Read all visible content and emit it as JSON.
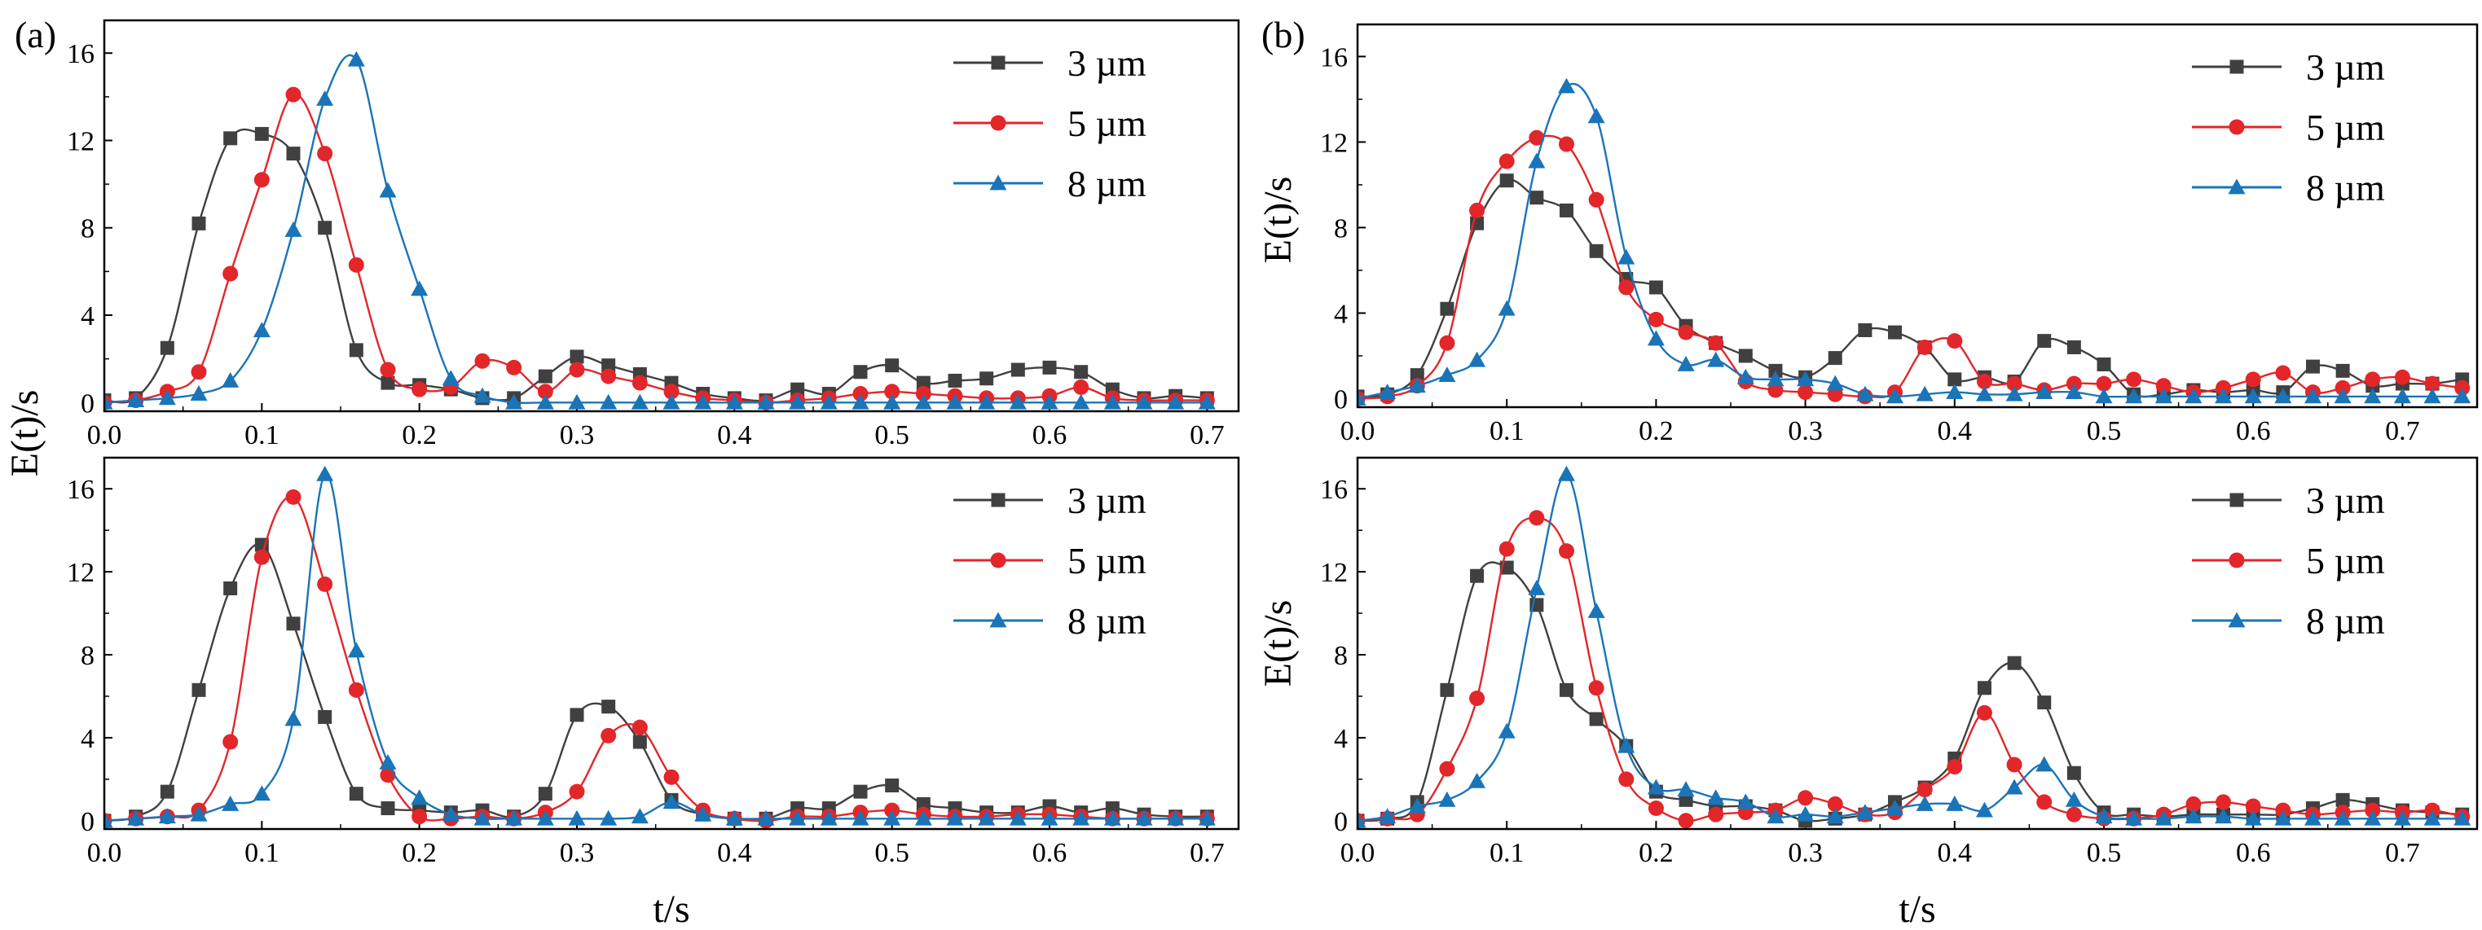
{
  "figure": {
    "panel_labels": [
      "(a)",
      "(b)"
    ],
    "colors": {
      "3 µm": "#404040",
      "5 µm": "#e2262a",
      "8 µm": "#1a74b8"
    }
  },
  "chart_data": [
    {
      "id": "a-top",
      "type": "line",
      "panel": "(a)",
      "xlabel": "",
      "ylabel": "E(t)/s",
      "xlim": [
        0,
        0.72
      ],
      "ylim": [
        -0.4,
        17.5
      ],
      "xticks": [
        0.0,
        0.1,
        0.2,
        0.3,
        0.4,
        0.5,
        0.6,
        0.7
      ],
      "yticks": [
        0,
        4,
        8,
        12,
        16
      ],
      "legend": [
        "3 µm",
        "5 µm",
        "8 µm"
      ],
      "legend_position": "top-right",
      "series": [
        {
          "name": "3 µm",
          "marker": "square",
          "color": "#404040",
          "x": [
            0,
            0.02,
            0.04,
            0.06,
            0.08,
            0.1,
            0.12,
            0.14,
            0.16,
            0.18,
            0.2,
            0.22,
            0.24,
            0.26,
            0.28,
            0.3,
            0.32,
            0.34,
            0.36,
            0.38,
            0.4,
            0.42,
            0.44,
            0.46,
            0.48,
            0.5,
            0.52,
            0.54,
            0.56,
            0.58,
            0.6,
            0.62,
            0.64,
            0.66,
            0.68,
            0.7
          ],
          "y": [
            0.1,
            0.2,
            2.5,
            8.2,
            12.1,
            12.3,
            11.4,
            8.0,
            2.4,
            0.9,
            0.8,
            0.6,
            0.2,
            0.2,
            1.2,
            2.1,
            1.7,
            1.3,
            0.9,
            0.4,
            0.2,
            0.1,
            0.6,
            0.4,
            1.4,
            1.7,
            0.9,
            1.0,
            1.1,
            1.5,
            1.6,
            1.4,
            0.6,
            0.2,
            0.3,
            0.2
          ]
        },
        {
          "name": "5 µm",
          "marker": "circle",
          "color": "#e2262a",
          "x": [
            0,
            0.02,
            0.04,
            0.06,
            0.08,
            0.1,
            0.12,
            0.14,
            0.16,
            0.18,
            0.2,
            0.22,
            0.24,
            0.26,
            0.28,
            0.3,
            0.32,
            0.34,
            0.36,
            0.38,
            0.4,
            0.42,
            0.44,
            0.46,
            0.48,
            0.5,
            0.52,
            0.54,
            0.56,
            0.58,
            0.6,
            0.62,
            0.64,
            0.66,
            0.68,
            0.7
          ],
          "y": [
            0.0,
            0.1,
            0.5,
            1.4,
            5.9,
            10.2,
            14.1,
            11.4,
            6.3,
            1.5,
            0.6,
            0.7,
            1.9,
            1.6,
            0.5,
            1.5,
            1.2,
            0.9,
            0.5,
            0.2,
            0.1,
            0.0,
            0.1,
            0.2,
            0.4,
            0.5,
            0.4,
            0.3,
            0.2,
            0.2,
            0.3,
            0.7,
            0.2,
            0.1,
            0.1,
            0.1
          ]
        },
        {
          "name": "8 µm",
          "marker": "triangle",
          "color": "#1a74b8",
          "x": [
            0,
            0.02,
            0.04,
            0.06,
            0.08,
            0.1,
            0.12,
            0.14,
            0.16,
            0.18,
            0.2,
            0.22,
            0.24,
            0.26,
            0.28,
            0.3,
            0.32,
            0.34,
            0.36,
            0.38,
            0.4,
            0.42,
            0.44,
            0.46,
            0.48,
            0.5,
            0.52,
            0.54,
            0.56,
            0.58,
            0.6,
            0.62,
            0.64,
            0.66,
            0.68,
            0.7
          ],
          "y": [
            0.0,
            0.1,
            0.2,
            0.4,
            1.0,
            3.3,
            7.9,
            13.9,
            15.7,
            9.7,
            5.2,
            1.1,
            0.3,
            0.0,
            0.0,
            0.0,
            0.0,
            0.0,
            0.0,
            0.0,
            0.0,
            0.0,
            0.0,
            0.0,
            0.0,
            0.0,
            0.0,
            0.0,
            0.0,
            0.0,
            0.0,
            0.0,
            0.0,
            0.0,
            0.0,
            0.0
          ]
        }
      ]
    },
    {
      "id": "a-bottom",
      "type": "line",
      "panel": "(a)",
      "xlabel": "t/s",
      "ylabel": "",
      "xlim": [
        0,
        0.72
      ],
      "ylim": [
        -0.4,
        17.5
      ],
      "xticks": [
        0.0,
        0.1,
        0.2,
        0.3,
        0.4,
        0.5,
        0.6,
        0.7
      ],
      "yticks": [
        0,
        4,
        8,
        12,
        16
      ],
      "legend": [
        "3 µm",
        "5 µm",
        "8 µm"
      ],
      "legend_position": "top-right",
      "series": [
        {
          "name": "3 µm",
          "marker": "square",
          "color": "#404040",
          "x": [
            0,
            0.02,
            0.04,
            0.06,
            0.08,
            0.1,
            0.12,
            0.14,
            0.16,
            0.18,
            0.2,
            0.22,
            0.24,
            0.26,
            0.28,
            0.3,
            0.32,
            0.34,
            0.36,
            0.38,
            0.4,
            0.42,
            0.44,
            0.46,
            0.48,
            0.5,
            0.52,
            0.54,
            0.56,
            0.58,
            0.6,
            0.62,
            0.64,
            0.66,
            0.68,
            0.7
          ],
          "y": [
            0.0,
            0.2,
            1.4,
            6.3,
            11.2,
            13.3,
            9.5,
            5.0,
            1.3,
            0.6,
            0.5,
            0.4,
            0.5,
            0.2,
            1.3,
            5.1,
            5.5,
            3.8,
            1.0,
            0.3,
            0.1,
            0.1,
            0.6,
            0.6,
            1.4,
            1.7,
            0.8,
            0.6,
            0.4,
            0.4,
            0.7,
            0.4,
            0.6,
            0.3,
            0.2,
            0.2
          ]
        },
        {
          "name": "5 µm",
          "marker": "circle",
          "color": "#e2262a",
          "x": [
            0,
            0.02,
            0.04,
            0.06,
            0.08,
            0.1,
            0.12,
            0.14,
            0.16,
            0.18,
            0.2,
            0.22,
            0.24,
            0.26,
            0.28,
            0.3,
            0.32,
            0.34,
            0.36,
            0.38,
            0.4,
            0.42,
            0.44,
            0.46,
            0.48,
            0.5,
            0.52,
            0.54,
            0.56,
            0.58,
            0.6,
            0.62,
            0.64,
            0.66,
            0.68,
            0.7
          ],
          "y": [
            0.0,
            0.1,
            0.2,
            0.5,
            3.8,
            12.7,
            15.6,
            11.4,
            6.3,
            2.2,
            0.2,
            0.1,
            0.2,
            0.1,
            0.4,
            1.4,
            4.1,
            4.5,
            2.1,
            0.5,
            0.1,
            0.0,
            0.2,
            0.2,
            0.4,
            0.5,
            0.3,
            0.2,
            0.2,
            0.3,
            0.3,
            0.2,
            0.1,
            0.1,
            0.1,
            0.1
          ]
        },
        {
          "name": "8 µm",
          "marker": "triangle",
          "color": "#1a74b8",
          "x": [
            0,
            0.02,
            0.04,
            0.06,
            0.08,
            0.1,
            0.12,
            0.14,
            0.16,
            0.18,
            0.2,
            0.22,
            0.24,
            0.26,
            0.28,
            0.3,
            0.32,
            0.34,
            0.36,
            0.38,
            0.4,
            0.42,
            0.44,
            0.46,
            0.48,
            0.5,
            0.52,
            0.54,
            0.56,
            0.58,
            0.6,
            0.62,
            0.64,
            0.66,
            0.68,
            0.7
          ],
          "y": [
            0.0,
            0.1,
            0.2,
            0.3,
            0.8,
            1.3,
            4.9,
            16.7,
            8.2,
            2.8,
            1.1,
            0.3,
            0.1,
            0.1,
            0.1,
            0.1,
            0.1,
            0.2,
            0.9,
            0.3,
            0.1,
            0.1,
            0.1,
            0.1,
            0.1,
            0.1,
            0.1,
            0.1,
            0.1,
            0.1,
            0.1,
            0.1,
            0.1,
            0.1,
            0.1,
            0.1
          ]
        }
      ]
    },
    {
      "id": "b-top",
      "type": "line",
      "panel": "(b)",
      "xlabel": "",
      "ylabel": "E(t)/s",
      "xlim": [
        0,
        0.75
      ],
      "ylim": [
        -0.4,
        17.5
      ],
      "xticks": [
        0.0,
        0.1,
        0.2,
        0.3,
        0.4,
        0.5,
        0.6,
        0.7
      ],
      "yticks": [
        0,
        4,
        8,
        12,
        16
      ],
      "legend": [
        "3 µm",
        "5 µm",
        "8 µm"
      ],
      "legend_position": "top-right",
      "series": [
        {
          "name": "3 µm",
          "marker": "square",
          "color": "#404040",
          "x": [
            0,
            0.02,
            0.04,
            0.06,
            0.08,
            0.1,
            0.12,
            0.14,
            0.16,
            0.18,
            0.2,
            0.22,
            0.24,
            0.26,
            0.28,
            0.3,
            0.32,
            0.34,
            0.36,
            0.38,
            0.4,
            0.42,
            0.44,
            0.46,
            0.48,
            0.5,
            0.52,
            0.54,
            0.56,
            0.58,
            0.6,
            0.62,
            0.64,
            0.66,
            0.68,
            0.7,
            0.72,
            0.74
          ],
          "y": [
            0.1,
            0.2,
            1.1,
            4.2,
            8.2,
            10.2,
            9.4,
            8.8,
            6.9,
            5.6,
            5.2,
            3.4,
            2.6,
            2.0,
            1.3,
            1.0,
            1.9,
            3.2,
            3.1,
            2.4,
            0.9,
            1.0,
            0.8,
            2.7,
            2.4,
            1.6,
            0.2,
            0.2,
            0.4,
            0.3,
            0.4,
            0.3,
            1.5,
            1.3,
            0.6,
            0.7,
            0.7,
            0.9
          ]
        },
        {
          "name": "5 µm",
          "marker": "circle",
          "color": "#e2262a",
          "x": [
            0,
            0.02,
            0.04,
            0.06,
            0.08,
            0.1,
            0.12,
            0.14,
            0.16,
            0.18,
            0.2,
            0.22,
            0.24,
            0.26,
            0.28,
            0.3,
            0.32,
            0.34,
            0.36,
            0.38,
            0.4,
            0.42,
            0.44,
            0.46,
            0.48,
            0.5,
            0.52,
            0.54,
            0.56,
            0.58,
            0.6,
            0.62,
            0.64,
            0.66,
            0.68,
            0.7,
            0.72,
            0.74
          ],
          "y": [
            0.0,
            0.1,
            0.6,
            2.6,
            8.8,
            11.1,
            12.2,
            11.9,
            9.3,
            5.2,
            3.7,
            3.1,
            2.6,
            0.8,
            0.4,
            0.3,
            0.2,
            0.1,
            0.3,
            2.4,
            2.7,
            0.8,
            0.7,
            0.4,
            0.7,
            0.7,
            0.9,
            0.6,
            0.3,
            0.5,
            0.9,
            1.2,
            0.3,
            0.5,
            0.9,
            1.0,
            0.7,
            0.5
          ]
        },
        {
          "name": "8 µm",
          "marker": "triangle",
          "color": "#1a74b8",
          "x": [
            0,
            0.02,
            0.04,
            0.06,
            0.08,
            0.1,
            0.12,
            0.14,
            0.16,
            0.18,
            0.2,
            0.22,
            0.24,
            0.26,
            0.28,
            0.3,
            0.32,
            0.34,
            0.36,
            0.38,
            0.4,
            0.42,
            0.44,
            0.46,
            0.48,
            0.5,
            0.52,
            0.54,
            0.56,
            0.58,
            0.6,
            0.62,
            0.64,
            0.66,
            0.68,
            0.7,
            0.72,
            0.74
          ],
          "y": [
            0.0,
            0.3,
            0.6,
            1.1,
            1.8,
            4.2,
            11.1,
            14.6,
            13.2,
            6.6,
            2.8,
            1.6,
            1.8,
            1.0,
            0.9,
            0.9,
            0.7,
            0.2,
            0.1,
            0.2,
            0.3,
            0.2,
            0.2,
            0.3,
            0.3,
            0.1,
            0.1,
            0.1,
            0.1,
            0.1,
            0.1,
            0.1,
            0.1,
            0.1,
            0.1,
            0.1,
            0.1,
            0.1
          ]
        }
      ]
    },
    {
      "id": "b-bottom",
      "type": "line",
      "panel": "(b)",
      "xlabel": "t/s",
      "ylabel": "E(t)/s",
      "xlim": [
        0,
        0.75
      ],
      "ylim": [
        -0.4,
        17.5
      ],
      "xticks": [
        0.0,
        0.1,
        0.2,
        0.3,
        0.4,
        0.5,
        0.6,
        0.7
      ],
      "yticks": [
        0,
        4,
        8,
        12,
        16
      ],
      "legend": [
        "3 µm",
        "5 µm",
        "8 µm"
      ],
      "legend_position": "top-right",
      "series": [
        {
          "name": "3 µm",
          "marker": "square",
          "color": "#404040",
          "x": [
            0,
            0.02,
            0.04,
            0.06,
            0.08,
            0.1,
            0.12,
            0.14,
            0.16,
            0.18,
            0.2,
            0.22,
            0.24,
            0.26,
            0.28,
            0.3,
            0.32,
            0.34,
            0.36,
            0.38,
            0.4,
            0.42,
            0.44,
            0.46,
            0.48,
            0.5,
            0.52,
            0.54,
            0.56,
            0.58,
            0.6,
            0.62,
            0.64,
            0.66,
            0.68,
            0.7,
            0.72,
            0.74
          ],
          "y": [
            0.0,
            0.1,
            0.9,
            6.3,
            11.8,
            12.2,
            10.4,
            6.3,
            4.9,
            3.6,
            1.4,
            1.0,
            0.7,
            0.7,
            0.5,
            0.0,
            0.1,
            0.3,
            0.9,
            1.6,
            3.0,
            6.4,
            7.6,
            5.7,
            2.3,
            0.4,
            0.3,
            0.2,
            0.3,
            0.3,
            0.3,
            0.3,
            0.6,
            1.0,
            0.8,
            0.5,
            0.4,
            0.3
          ]
        },
        {
          "name": "5 µm",
          "marker": "circle",
          "color": "#e2262a",
          "x": [
            0,
            0.02,
            0.04,
            0.06,
            0.08,
            0.1,
            0.12,
            0.14,
            0.16,
            0.18,
            0.2,
            0.22,
            0.24,
            0.26,
            0.28,
            0.3,
            0.32,
            0.34,
            0.36,
            0.38,
            0.4,
            0.42,
            0.44,
            0.46,
            0.48,
            0.5,
            0.52,
            0.54,
            0.56,
            0.58,
            0.6,
            0.62,
            0.64,
            0.66,
            0.68,
            0.7,
            0.72,
            0.74
          ],
          "y": [
            0.0,
            0.1,
            0.3,
            2.5,
            5.9,
            13.1,
            14.6,
            13.0,
            6.4,
            2.0,
            0.6,
            0.0,
            0.3,
            0.4,
            0.5,
            1.1,
            0.8,
            0.3,
            0.4,
            1.5,
            2.6,
            5.2,
            2.7,
            0.9,
            0.3,
            0.1,
            0.1,
            0.3,
            0.8,
            0.9,
            0.7,
            0.5,
            0.3,
            0.4,
            0.5,
            0.4,
            0.5,
            0.2
          ]
        },
        {
          "name": "8 µm",
          "marker": "triangle",
          "color": "#1a74b8",
          "x": [
            0,
            0.02,
            0.04,
            0.06,
            0.08,
            0.1,
            0.12,
            0.14,
            0.16,
            0.18,
            0.2,
            0.22,
            0.24,
            0.26,
            0.28,
            0.3,
            0.32,
            0.34,
            0.36,
            0.38,
            0.4,
            0.42,
            0.44,
            0.46,
            0.48,
            0.5,
            0.52,
            0.54,
            0.56,
            0.58,
            0.6,
            0.62,
            0.64,
            0.66,
            0.68,
            0.7,
            0.72,
            0.74
          ],
          "y": [
            0.0,
            0.2,
            0.7,
            1.0,
            1.9,
            4.3,
            11.2,
            16.7,
            10.1,
            3.6,
            1.6,
            1.5,
            1.1,
            0.9,
            0.2,
            0.3,
            0.2,
            0.4,
            0.6,
            0.8,
            0.8,
            0.5,
            1.6,
            2.7,
            1.0,
            0.2,
            0.1,
            0.1,
            0.2,
            0.2,
            0.1,
            0.1,
            0.1,
            0.1,
            0.1,
            0.1,
            0.1,
            0.1
          ]
        }
      ]
    }
  ]
}
